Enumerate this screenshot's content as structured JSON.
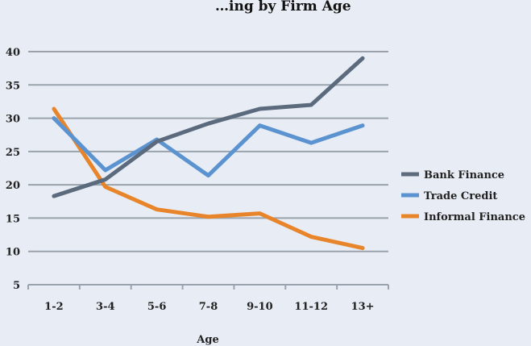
{
  "chart_data": {
    "type": "line",
    "title": "…ing by Firm Age",
    "xlabel": "Age",
    "ylabel": "",
    "categories": [
      "1-2",
      "3-4",
      "5-6",
      "7-8",
      "9-10",
      "11-12",
      "13+"
    ],
    "ylim": [
      5,
      40
    ],
    "yticks": [
      5,
      10,
      15,
      20,
      25,
      30,
      35,
      40
    ],
    "grid": true,
    "legend_position": "right",
    "series": [
      {
        "name": "Bank Finance",
        "color": "#5b6b7d",
        "values": [
          18.3,
          20.8,
          26.5,
          29.2,
          31.4,
          32.0,
          39.0
        ]
      },
      {
        "name": "Trade Credit",
        "color": "#5b93d1",
        "values": [
          30.0,
          22.2,
          26.8,
          21.4,
          28.9,
          26.3,
          28.9
        ]
      },
      {
        "name": "Informal Finance",
        "color": "#e8852a",
        "values": [
          31.4,
          19.7,
          16.3,
          15.2,
          15.7,
          12.2,
          10.5
        ]
      }
    ]
  }
}
